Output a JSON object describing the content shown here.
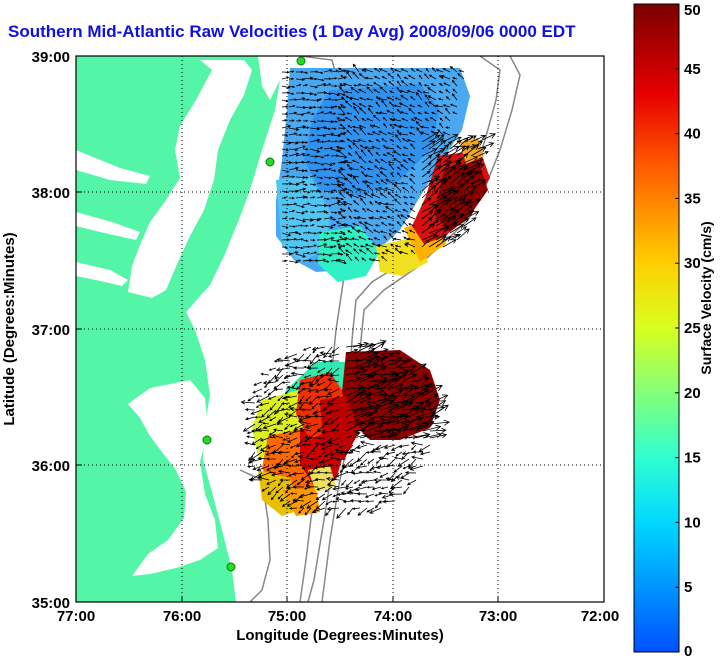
{
  "title": "Southern Mid-Atlantic Raw Velocities (1 Day Avg) 2008/09/06 0000 EDT",
  "map": {
    "xlabel": "Longitude (Degrees:Minutes)",
    "ylabel": "Latitude (Degrees:Minutes)",
    "lon_ticks": [
      "77:00",
      "76:00",
      "75:00",
      "74:00",
      "73:00",
      "72:00"
    ],
    "lat_ticks": [
      "39:00",
      "38:00",
      "37:00",
      "36:00",
      "35:00"
    ],
    "lon_range": [
      -77,
      -72
    ],
    "lat_range": [
      35,
      39
    ],
    "grid": "dotted",
    "land_color": "#55f5a8",
    "water_color": "#ffffff"
  },
  "colorbar": {
    "label": "Surface Velocity (cm/s)",
    "min": 0,
    "max": 50,
    "ticks": [
      "0",
      "5",
      "10",
      "15",
      "20",
      "25",
      "30",
      "35",
      "40",
      "45",
      "50"
    ]
  }
}
